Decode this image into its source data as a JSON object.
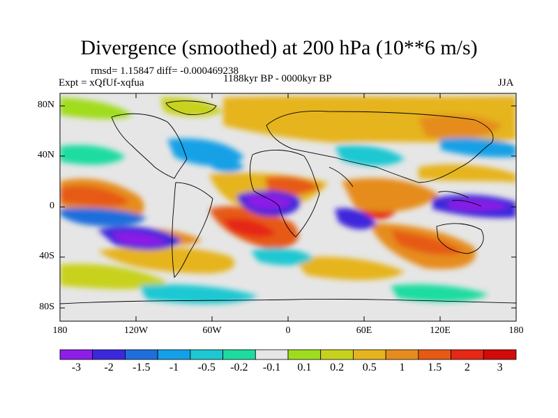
{
  "title": "Divergence (smoothed) at 200 hPa (10**6 m/s)",
  "stats": "rmsd= 1.15847 diff= -0.000469238",
  "experiment": "Expt = xQfUf-xqfua",
  "period": "1188kyr BP - 0000kyr BP",
  "season": "JJA",
  "y_axis": {
    "ticks": [
      "80N",
      "40N",
      "0",
      "40S",
      "80S"
    ]
  },
  "x_axis": {
    "ticks": [
      "180",
      "120W",
      "60W",
      "0",
      "60E",
      "120E",
      "180"
    ]
  },
  "colorbar": {
    "labels": [
      "-3",
      "-2",
      "-1.5",
      "-1",
      "-0.5",
      "-0.2",
      "-0.1",
      "0.1",
      "0.2",
      "0.5",
      "1",
      "1.5",
      "2",
      "3"
    ],
    "colors": [
      "#8c1ee6",
      "#3c28dc",
      "#1e6edc",
      "#14a0e6",
      "#1ec8d2",
      "#1edca0",
      "#e6e6e6",
      "#a0dc1e",
      "#c8d21e",
      "#e6b41e",
      "#e68c1e",
      "#e65a14",
      "#e62814",
      "#d20a0a"
    ]
  },
  "colors": {
    "background_field": "#e6e6e6",
    "coastline": "#000000"
  }
}
